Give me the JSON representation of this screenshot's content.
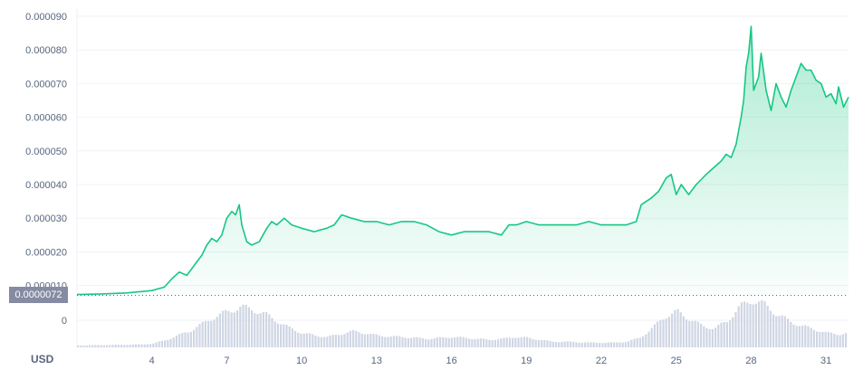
{
  "chart_data": {
    "type": "area",
    "title": "",
    "xlabel": "",
    "ylabel": "",
    "currency_label": "USD",
    "current_price_label": "0.0000072",
    "current_price": 7.2e-06,
    "ylim": [
      7.2e-06,
      9e-05
    ],
    "y_ticks": [
      {
        "value": 1e-05,
        "label": "0.000010"
      },
      {
        "value": 2e-05,
        "label": "0.000020"
      },
      {
        "value": 3e-05,
        "label": "0.000030"
      },
      {
        "value": 4e-05,
        "label": "0.000040"
      },
      {
        "value": 5e-05,
        "label": "0.000050"
      },
      {
        "value": 6e-05,
        "label": "0.000060"
      },
      {
        "value": 7e-05,
        "label": "0.000070"
      },
      {
        "value": 8e-05,
        "label": "0.000080"
      },
      {
        "value": 9e-05,
        "label": "0.000090"
      }
    ],
    "volume_tick_label": "0",
    "xlim": [
      1,
      31.9
    ],
    "x_ticks": [
      {
        "value": 4,
        "label": "4"
      },
      {
        "value": 7,
        "label": "7"
      },
      {
        "value": 10,
        "label": "10"
      },
      {
        "value": 13,
        "label": "13"
      },
      {
        "value": 16,
        "label": "16"
      },
      {
        "value": 19,
        "label": "19"
      },
      {
        "value": 22,
        "label": "22"
      },
      {
        "value": 25,
        "label": "25"
      },
      {
        "value": 28,
        "label": "28"
      },
      {
        "value": 31,
        "label": "31"
      }
    ],
    "grid": true,
    "colors": {
      "line": "#16c784",
      "volume": "#cfd6e4",
      "badge": "#858ca2"
    },
    "series": [
      {
        "values": [
          [
            1.0,
            7.3e-06
          ],
          [
            2.0,
            7.5e-06
          ],
          [
            3.0,
            7.8e-06
          ],
          [
            4.0,
            8.5e-06
          ],
          [
            4.5,
            9.5e-06
          ],
          [
            4.8,
            1.2e-05
          ],
          [
            5.1,
            1.4e-05
          ],
          [
            5.4,
            1.3e-05
          ],
          [
            5.6,
            1.5e-05
          ],
          [
            5.8,
            1.7e-05
          ],
          [
            6.0,
            1.9e-05
          ],
          [
            6.2,
            2.2e-05
          ],
          [
            6.4,
            2.4e-05
          ],
          [
            6.6,
            2.3e-05
          ],
          [
            6.8,
            2.5e-05
          ],
          [
            7.0,
            3e-05
          ],
          [
            7.2,
            3.2e-05
          ],
          [
            7.35,
            3.1e-05
          ],
          [
            7.5,
            3.4e-05
          ],
          [
            7.6,
            2.8e-05
          ],
          [
            7.8,
            2.3e-05
          ],
          [
            8.0,
            2.2e-05
          ],
          [
            8.3,
            2.3e-05
          ],
          [
            8.6,
            2.7e-05
          ],
          [
            8.8,
            2.9e-05
          ],
          [
            9.0,
            2.8e-05
          ],
          [
            9.3,
            3e-05
          ],
          [
            9.6,
            2.8e-05
          ],
          [
            10.0,
            2.7e-05
          ],
          [
            10.5,
            2.6e-05
          ],
          [
            11.0,
            2.7e-05
          ],
          [
            11.3,
            2.8e-05
          ],
          [
            11.6,
            3.1e-05
          ],
          [
            12.0,
            3e-05
          ],
          [
            12.5,
            2.9e-05
          ],
          [
            13.0,
            2.9e-05
          ],
          [
            13.5,
            2.8e-05
          ],
          [
            14.0,
            2.9e-05
          ],
          [
            14.5,
            2.9e-05
          ],
          [
            15.0,
            2.8e-05
          ],
          [
            15.5,
            2.6e-05
          ],
          [
            16.0,
            2.5e-05
          ],
          [
            16.5,
            2.6e-05
          ],
          [
            17.0,
            2.6e-05
          ],
          [
            17.5,
            2.6e-05
          ],
          [
            18.0,
            2.5e-05
          ],
          [
            18.3,
            2.8e-05
          ],
          [
            18.6,
            2.8e-05
          ],
          [
            19.0,
            2.9e-05
          ],
          [
            19.5,
            2.8e-05
          ],
          [
            20.0,
            2.8e-05
          ],
          [
            20.5,
            2.8e-05
          ],
          [
            21.0,
            2.8e-05
          ],
          [
            21.5,
            2.9e-05
          ],
          [
            22.0,
            2.8e-05
          ],
          [
            22.5,
            2.8e-05
          ],
          [
            23.0,
            2.8e-05
          ],
          [
            23.4,
            2.9e-05
          ],
          [
            23.6,
            3.4e-05
          ],
          [
            24.0,
            3.6e-05
          ],
          [
            24.3,
            3.8e-05
          ],
          [
            24.6,
            4.2e-05
          ],
          [
            24.8,
            4.3e-05
          ],
          [
            25.0,
            3.7e-05
          ],
          [
            25.2,
            4e-05
          ],
          [
            25.5,
            3.7e-05
          ],
          [
            25.8,
            4e-05
          ],
          [
            26.2,
            4.3e-05
          ],
          [
            26.5,
            4.5e-05
          ],
          [
            26.8,
            4.7e-05
          ],
          [
            27.0,
            4.9e-05
          ],
          [
            27.2,
            4.8e-05
          ],
          [
            27.4,
            5.2e-05
          ],
          [
            27.6,
            6e-05
          ],
          [
            27.7,
            6.5e-05
          ],
          [
            27.8,
            7.5e-05
          ],
          [
            27.9,
            7.9e-05
          ],
          [
            28.0,
            8.7e-05
          ],
          [
            28.1,
            6.8e-05
          ],
          [
            28.3,
            7.2e-05
          ],
          [
            28.4,
            7.9e-05
          ],
          [
            28.6,
            6.8e-05
          ],
          [
            28.8,
            6.2e-05
          ],
          [
            29.0,
            7e-05
          ],
          [
            29.2,
            6.6e-05
          ],
          [
            29.4,
            6.3e-05
          ],
          [
            29.6,
            6.8e-05
          ],
          [
            29.8,
            7.2e-05
          ],
          [
            30.0,
            7.6e-05
          ],
          [
            30.2,
            7.4e-05
          ],
          [
            30.4,
            7.4e-05
          ],
          [
            30.6,
            7.1e-05
          ],
          [
            30.8,
            7e-05
          ],
          [
            31.0,
            6.6e-05
          ],
          [
            31.2,
            6.7e-05
          ],
          [
            31.4,
            6.4e-05
          ],
          [
            31.5,
            6.9e-05
          ],
          [
            31.7,
            6.3e-05
          ],
          [
            31.9,
            6.6e-05
          ]
        ]
      }
    ],
    "volume": [
      [
        1.0,
        0.04
      ],
      [
        3.5,
        0.06
      ],
      [
        4.0,
        0.08
      ],
      [
        4.5,
        0.15
      ],
      [
        5.0,
        0.25
      ],
      [
        5.5,
        0.35
      ],
      [
        6.0,
        0.5
      ],
      [
        6.5,
        0.65
      ],
      [
        7.0,
        0.75
      ],
      [
        7.5,
        0.85
      ],
      [
        8.0,
        0.8
      ],
      [
        8.5,
        0.7
      ],
      [
        9.0,
        0.55
      ],
      [
        9.5,
        0.4
      ],
      [
        10.0,
        0.3
      ],
      [
        10.5,
        0.25
      ],
      [
        11.0,
        0.22
      ],
      [
        11.5,
        0.28
      ],
      [
        12.0,
        0.34
      ],
      [
        12.5,
        0.3
      ],
      [
        13.0,
        0.25
      ],
      [
        13.5,
        0.23
      ],
      [
        14.0,
        0.22
      ],
      [
        14.5,
        0.2
      ],
      [
        15.0,
        0.18
      ],
      [
        15.5,
        0.2
      ],
      [
        16.0,
        0.22
      ],
      [
        16.5,
        0.2
      ],
      [
        17.0,
        0.18
      ],
      [
        17.5,
        0.16
      ],
      [
        18.0,
        0.18
      ],
      [
        18.5,
        0.22
      ],
      [
        19.0,
        0.2
      ],
      [
        19.5,
        0.16
      ],
      [
        20.0,
        0.12
      ],
      [
        20.5,
        0.12
      ],
      [
        21.0,
        0.11
      ],
      [
        21.5,
        0.1
      ],
      [
        22.0,
        0.1
      ],
      [
        22.5,
        0.1
      ],
      [
        23.0,
        0.12
      ],
      [
        23.5,
        0.2
      ],
      [
        24.0,
        0.4
      ],
      [
        24.5,
        0.65
      ],
      [
        25.0,
        0.75
      ],
      [
        25.5,
        0.6
      ],
      [
        26.0,
        0.45
      ],
      [
        26.5,
        0.4
      ],
      [
        27.0,
        0.55
      ],
      [
        27.5,
        0.85
      ],
      [
        28.0,
        1.0
      ],
      [
        28.5,
        0.9
      ],
      [
        29.0,
        0.7
      ],
      [
        29.5,
        0.55
      ],
      [
        30.0,
        0.45
      ],
      [
        30.5,
        0.38
      ],
      [
        31.0,
        0.3
      ],
      [
        31.5,
        0.28
      ],
      [
        31.9,
        0.3
      ]
    ]
  }
}
